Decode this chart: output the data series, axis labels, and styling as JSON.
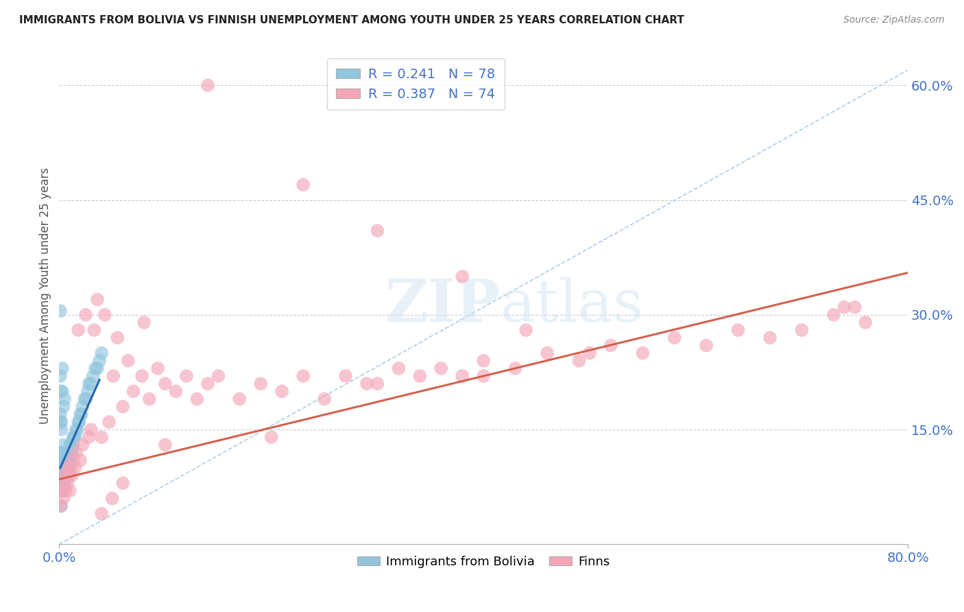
{
  "title": "IMMIGRANTS FROM BOLIVIA VS FINNISH UNEMPLOYMENT AMONG YOUTH UNDER 25 YEARS CORRELATION CHART",
  "source": "Source: ZipAtlas.com",
  "ylabel": "Unemployment Among Youth under 25 years",
  "right_yticklabels": [
    "15.0%",
    "30.0%",
    "45.0%",
    "60.0%"
  ],
  "right_yticks": [
    0.15,
    0.3,
    0.45,
    0.6
  ],
  "legend_entry1": "R = 0.241   N = 78",
  "legend_entry2": "R = 0.387   N = 74",
  "legend_label1": "Immigrants from Bolivia",
  "legend_label2": "Finns",
  "R1": 0.241,
  "N1": 78,
  "R2": 0.387,
  "N2": 74,
  "blue_scatter_color": "#92c5de",
  "pink_scatter_color": "#f4a6b8",
  "blue_line_color": "#2166ac",
  "pink_line_color": "#d6604d",
  "dash_line_color": "#a6c8e8",
  "background_color": "#ffffff",
  "grid_color": "#cccccc",
  "xlim": [
    0.0,
    0.8
  ],
  "ylim": [
    0.0,
    0.65
  ],
  "bolivia_x": [
    0.001,
    0.001,
    0.001,
    0.001,
    0.001,
    0.002,
    0.002,
    0.002,
    0.002,
    0.002,
    0.002,
    0.002,
    0.003,
    0.003,
    0.003,
    0.003,
    0.003,
    0.003,
    0.004,
    0.004,
    0.004,
    0.004,
    0.004,
    0.005,
    0.005,
    0.005,
    0.005,
    0.006,
    0.006,
    0.006,
    0.006,
    0.007,
    0.007,
    0.007,
    0.008,
    0.008,
    0.008,
    0.009,
    0.009,
    0.01,
    0.01,
    0.01,
    0.011,
    0.011,
    0.012,
    0.012,
    0.013,
    0.013,
    0.014,
    0.015,
    0.016,
    0.017,
    0.018,
    0.019,
    0.02,
    0.021,
    0.022,
    0.024,
    0.025,
    0.027,
    0.028,
    0.03,
    0.032,
    0.034,
    0.036,
    0.038,
    0.04,
    0.001,
    0.001,
    0.001,
    0.001,
    0.002,
    0.002,
    0.003,
    0.003,
    0.004,
    0.005,
    0.001
  ],
  "bolivia_y": [
    0.08,
    0.09,
    0.1,
    0.11,
    0.12,
    0.05,
    0.07,
    0.08,
    0.09,
    0.1,
    0.11,
    0.12,
    0.07,
    0.08,
    0.09,
    0.1,
    0.11,
    0.12,
    0.08,
    0.09,
    0.1,
    0.11,
    0.13,
    0.08,
    0.09,
    0.1,
    0.11,
    0.09,
    0.1,
    0.11,
    0.12,
    0.09,
    0.1,
    0.11,
    0.1,
    0.11,
    0.12,
    0.1,
    0.11,
    0.11,
    0.12,
    0.13,
    0.12,
    0.13,
    0.12,
    0.13,
    0.13,
    0.14,
    0.14,
    0.14,
    0.15,
    0.15,
    0.16,
    0.16,
    0.17,
    0.17,
    0.18,
    0.19,
    0.19,
    0.2,
    0.21,
    0.21,
    0.22,
    0.23,
    0.23,
    0.24,
    0.25,
    0.16,
    0.17,
    0.2,
    0.22,
    0.15,
    0.16,
    0.2,
    0.23,
    0.18,
    0.19,
    0.305
  ],
  "finns_x": [
    0.001,
    0.002,
    0.003,
    0.004,
    0.005,
    0.006,
    0.007,
    0.008,
    0.009,
    0.01,
    0.011,
    0.012,
    0.013,
    0.015,
    0.016,
    0.018,
    0.02,
    0.022,
    0.025,
    0.028,
    0.03,
    0.033,
    0.036,
    0.04,
    0.043,
    0.047,
    0.051,
    0.055,
    0.06,
    0.065,
    0.07,
    0.078,
    0.085,
    0.093,
    0.1,
    0.11,
    0.12,
    0.13,
    0.14,
    0.15,
    0.17,
    0.19,
    0.21,
    0.23,
    0.25,
    0.27,
    0.29,
    0.32,
    0.34,
    0.36,
    0.38,
    0.4,
    0.43,
    0.46,
    0.49,
    0.52,
    0.55,
    0.58,
    0.61,
    0.64,
    0.67,
    0.7,
    0.73,
    0.76,
    0.5,
    0.4,
    0.3,
    0.2,
    0.1,
    0.08,
    0.06,
    0.05,
    0.04,
    0.74
  ],
  "finns_y": [
    0.05,
    0.07,
    0.08,
    0.06,
    0.09,
    0.07,
    0.1,
    0.08,
    0.09,
    0.07,
    0.1,
    0.09,
    0.11,
    0.1,
    0.12,
    0.28,
    0.11,
    0.13,
    0.3,
    0.14,
    0.15,
    0.28,
    0.32,
    0.14,
    0.3,
    0.16,
    0.22,
    0.27,
    0.18,
    0.24,
    0.2,
    0.22,
    0.19,
    0.23,
    0.21,
    0.2,
    0.22,
    0.19,
    0.21,
    0.22,
    0.19,
    0.21,
    0.2,
    0.22,
    0.19,
    0.22,
    0.21,
    0.23,
    0.22,
    0.23,
    0.22,
    0.24,
    0.23,
    0.25,
    0.24,
    0.26,
    0.25,
    0.27,
    0.26,
    0.28,
    0.27,
    0.28,
    0.3,
    0.29,
    0.25,
    0.22,
    0.21,
    0.14,
    0.13,
    0.29,
    0.08,
    0.06,
    0.04,
    0.31
  ],
  "finns_x_outliers": [
    0.14,
    0.23,
    0.3,
    0.38,
    0.44,
    0.75
  ],
  "finns_y_outliers": [
    0.6,
    0.47,
    0.41,
    0.35,
    0.28,
    0.31
  ],
  "blue_line_x": [
    0.001,
    0.038
  ],
  "blue_line_y_start": 0.1,
  "blue_line_y_end": 0.215,
  "dash_line_x": [
    0.0,
    0.8
  ],
  "dash_line_y": [
    0.0,
    0.62
  ],
  "pink_line_x": [
    0.0,
    0.8
  ],
  "pink_line_y": [
    0.085,
    0.355
  ]
}
